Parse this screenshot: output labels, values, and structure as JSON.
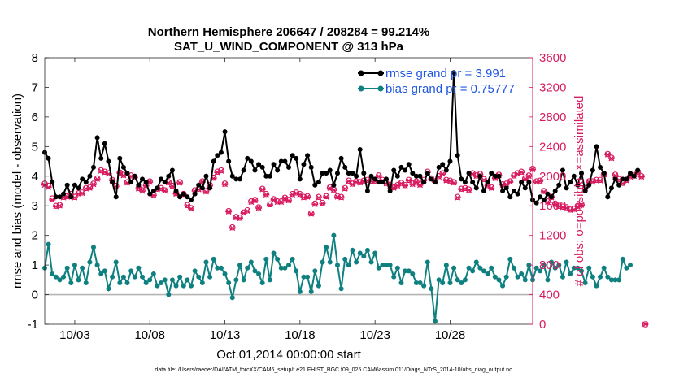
{
  "chart_data": {
    "type": "line",
    "title_line1": "Northern Hemisphere 206647 / 208284 = 99.214%",
    "title_line2": "SAT_U_WIND_COMPONENT @ 313 hPa",
    "xlabel": "Oct.01,2014 00:00:00 start",
    "ylabel_left": "rmse and bias (model - observation)",
    "ylabel_right": "# of obs: o=possible; ×=assimilated",
    "footnote": "data file: /Users/raeder/DAI/ATM_forcXX/CAM6_setup/f.e21.FHIST_BGC.f09_025.CAM6assim.011/Diags_NTrS_2014-10/obs_diag_output.nc",
    "xlim": [
      1,
      33.5
    ],
    "ylim_left": [
      -1,
      8
    ],
    "ylim_right": [
      0,
      3600
    ],
    "x_ticks": [
      3,
      8,
      13,
      18,
      23,
      28
    ],
    "x_tick_labels": [
      "10/03",
      "10/08",
      "10/13",
      "10/18",
      "10/23",
      "10/28"
    ],
    "y_left_ticks": [
      "-1",
      "0",
      "1",
      "2",
      "3",
      "4",
      "5",
      "6",
      "7",
      "8"
    ],
    "y_right_ticks": [
      "0",
      "400",
      "800",
      "1200",
      "1600",
      "2000",
      "2400",
      "2800",
      "3200",
      "3600"
    ],
    "zero_line": 0,
    "colors": {
      "rmse": "#000000",
      "bias": "#0f8080",
      "obs": "#d81b60",
      "legend_text": "#1f56e0",
      "zero_line": "#b4b4b4"
    },
    "series": [
      {
        "name": "rmse grand pr = 3.991",
        "axis": "left",
        "style": "line-marker",
        "x_start": 1.0,
        "x_step": 0.25,
        "values": [
          4.8,
          4.6,
          3.8,
          3.3,
          3.3,
          3.4,
          3.7,
          3.3,
          3.7,
          3.6,
          3.9,
          3.8,
          4.0,
          4.3,
          5.3,
          4.6,
          5.1,
          4.5,
          3.8,
          3.3,
          4.6,
          4.3,
          4.1,
          3.8,
          4.0,
          3.7,
          3.9,
          3.8,
          3.4,
          3.5,
          3.6,
          3.9,
          3.8,
          4.0,
          4.2,
          3.5,
          3.3,
          3.4,
          3.3,
          3.2,
          3.4,
          3.7,
          3.6,
          4.0,
          3.6,
          4.5,
          4.7,
          4.8,
          5.5,
          4.5,
          4.0,
          3.9,
          3.9,
          4.2,
          4.6,
          4.5,
          4.2,
          4.4,
          4.3,
          4.0,
          4.0,
          4.4,
          4.2,
          4.5,
          4.5,
          4.3,
          4.7,
          4.6,
          3.9,
          4.4,
          4.7,
          4.3,
          3.7,
          3.8,
          4.1,
          4.1,
          4.2,
          3.7,
          4.1,
          4.6,
          4.3,
          4.1,
          4.1,
          4.0,
          4.9,
          4.1,
          3.5,
          4.0,
          3.9,
          3.8,
          3.8,
          3.9,
          3.5,
          4.2,
          4.0,
          4.3,
          4.2,
          4.4,
          4.1,
          4.0,
          4.0,
          3.8,
          4.1,
          3.9,
          3.8,
          4.3,
          4.4,
          4.2,
          4.5,
          7.5,
          4.7,
          3.9,
          3.8,
          4.1,
          3.8,
          3.6,
          4.0,
          3.5,
          3.8,
          4.1,
          4.0,
          4.0,
          3.5,
          3.6,
          3.3,
          3.5,
          3.4,
          3.8,
          3.6,
          3.8,
          3.2,
          3.1,
          3.3,
          3.2,
          3.4,
          3.3,
          3.5,
          3.7,
          4.2,
          3.6,
          3.8,
          4.0,
          3.7,
          4.1,
          3.5,
          3.7,
          4.2,
          5.0,
          4.3,
          4.1,
          3.3,
          3.6,
          3.9,
          3.7,
          3.9,
          3.9,
          4.1,
          4.0,
          4.2
        ]
      },
      {
        "name": "bias grand pr = 0.75777",
        "axis": "left",
        "style": "line-marker",
        "x_start": 1.0,
        "x_step": 0.25,
        "values": [
          0.9,
          1.7,
          0.7,
          0.6,
          0.5,
          0.6,
          0.9,
          0.4,
          1.0,
          0.5,
          0.9,
          0.4,
          1.1,
          1.6,
          1.0,
          0.7,
          0.8,
          0.2,
          0.6,
          1.1,
          0.4,
          0.6,
          0.4,
          0.8,
          0.6,
          0.9,
          0.6,
          0.4,
          0.5,
          0.7,
          0.3,
          0.4,
          0.5,
          0.0,
          0.5,
          0.3,
          0.6,
          0.3,
          0.5,
          0.3,
          0.8,
          0.6,
          0.4,
          1.1,
          0.6,
          1.2,
          0.9,
          0.9,
          0.7,
          0.4,
          -0.1,
          0.5,
          1.0,
          0.5,
          0.9,
          1.1,
          0.8,
          0.7,
          0.4,
          1.2,
          0.5,
          1.4,
          1.2,
          0.9,
          0.9,
          1.0,
          1.2,
          0.8,
          0.1,
          0.6,
          0.6,
          0.1,
          0.8,
          0.3,
          1.1,
          1.6,
          1.1,
          2.0,
          1.0,
          0.2,
          1.2,
          1.0,
          1.5,
          1.1,
          1.4,
          1.3,
          1.5,
          1.1,
          1.4,
          0.9,
          1.0,
          1.0,
          1.0,
          0.6,
          0.9,
          0.4,
          0.8,
          0.8,
          0.7,
          0.4,
          0.4,
          0.3,
          1.1,
          0.2,
          -0.9,
          0.5,
          0.4,
          1.0,
          0.4,
          0.9,
          0.5,
          0.4,
          0.5,
          0.9,
          0.8,
          1.1,
          0.9,
          0.8,
          0.7,
          0.9,
          0.6,
          0.5,
          0.3,
          0.6,
          1.2,
          0.9,
          0.6,
          0.7,
          0.5,
          1.0,
          0.5,
          0.9,
          0.8,
          1.0,
          0.5,
          1.1,
          0.9,
          1.0,
          0.6,
          1.1,
          0.7,
          0.9,
          0.9,
          0.8,
          0.4,
          0.9,
          0.6,
          0.3,
          0.6,
          0.9,
          0.6,
          0.5,
          0.5,
          0.5,
          1.2,
          0.9,
          1.0
        ]
      },
      {
        "name": "# of obs possible",
        "axis": "right",
        "style": "circle",
        "x_start": 1.0,
        "x_step": 0.25,
        "values": [
          1900,
          1870,
          1700,
          1600,
          1610,
          1720,
          1730,
          1760,
          1720,
          1770,
          1780,
          1840,
          1850,
          1900,
          1970,
          2080,
          2060,
          2040,
          1950,
          1870,
          2050,
          2020,
          1920,
          2010,
          1990,
          1840,
          1810,
          1880,
          1930,
          1750,
          1830,
          1840,
          1810,
          1920,
          1870,
          1770,
          1920,
          1760,
          1610,
          1570,
          1810,
          1830,
          1930,
          1800,
          1880,
          1980,
          2060,
          2080,
          1900,
          1530,
          1310,
          1450,
          1440,
          1510,
          1540,
          1660,
          1680,
          1580,
          1830,
          1760,
          1620,
          1690,
          1660,
          1660,
          1710,
          1680,
          1760,
          1780,
          1760,
          1720,
          1730,
          1500,
          1630,
          1720,
          1640,
          1730,
          1850,
          1820,
          1730,
          1720,
          1840,
          1940,
          1900,
          1930,
          1920,
          1940,
          1950,
          1940,
          1940,
          2010,
          1950,
          1910,
          1880,
          1850,
          1880,
          1910,
          1880,
          1950,
          1900,
          1930,
          1890,
          1950,
          2060,
          1970,
          1930,
          2000,
          2040,
          1950,
          1940,
          1920,
          1720,
          1830,
          1840,
          1820,
          2040,
          2010,
          2030,
          1960,
          1880,
          1850,
          1980,
          2020,
          1890,
          1900,
          1930,
          2010,
          2040,
          2060,
          1970,
          2010,
          2100,
          1930,
          1940,
          1800,
          1660,
          1720,
          1630,
          1600,
          1590,
          1580,
          1550,
          1560,
          1600,
          1620,
          1840,
          1930,
          1930,
          1950,
          1950,
          2030,
          2300,
          2250,
          2020,
          1960,
          1910,
          1950,
          2000,
          2010,
          2060,
          2000,
          0
        ]
      },
      {
        "name": "# of obs assimilated",
        "axis": "right",
        "style": "cross",
        "x_start": 1.0,
        "x_step": 0.25,
        "values": [
          1880,
          1850,
          1680,
          1590,
          1600,
          1710,
          1720,
          1750,
          1710,
          1760,
          1770,
          1830,
          1840,
          1890,
          1960,
          2070,
          2050,
          2030,
          1940,
          1860,
          2040,
          2010,
          1910,
          2000,
          1980,
          1830,
          1800,
          1870,
          1920,
          1740,
          1820,
          1830,
          1800,
          1910,
          1860,
          1760,
          1910,
          1750,
          1600,
          1560,
          1800,
          1820,
          1920,
          1790,
          1870,
          1970,
          2050,
          2070,
          1890,
          1520,
          1300,
          1440,
          1430,
          1500,
          1530,
          1650,
          1670,
          1570,
          1820,
          1750,
          1610,
          1680,
          1650,
          1650,
          1700,
          1670,
          1750,
          1770,
          1750,
          1710,
          1720,
          1490,
          1620,
          1710,
          1630,
          1720,
          1840,
          1810,
          1720,
          1710,
          1830,
          1930,
          1890,
          1920,
          1910,
          1930,
          1940,
          1930,
          1930,
          2000,
          1940,
          1900,
          1870,
          1840,
          1870,
          1900,
          1870,
          1940,
          1890,
          1920,
          1880,
          1940,
          2050,
          1960,
          1920,
          1990,
          2030,
          1940,
          1930,
          1910,
          1710,
          1820,
          1830,
          1810,
          2030,
          2000,
          2020,
          1950,
          1870,
          1840,
          1970,
          2010,
          1880,
          1890,
          1920,
          2000,
          2030,
          2050,
          1960,
          2000,
          2090,
          1920,
          1930,
          1790,
          1650,
          1710,
          1620,
          1590,
          1580,
          1570,
          1540,
          1550,
          1590,
          1610,
          1830,
          1920,
          1920,
          1940,
          1940,
          2020,
          2290,
          2240,
          2010,
          1950,
          1900,
          1940,
          1990,
          2000,
          2050,
          1990,
          0
        ]
      }
    ]
  }
}
